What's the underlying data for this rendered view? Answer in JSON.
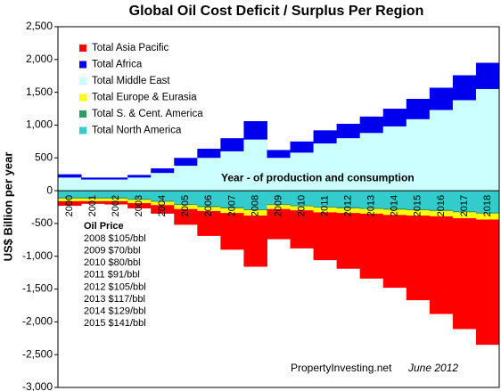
{
  "chart_data": {
    "type": "stacked-step-area",
    "title": "Global Oil Cost Deficit / Surplus Per Region",
    "y_label": "US$ Billion per year",
    "categories": [
      "2000",
      "2001",
      "2002",
      "2003",
      "2004",
      "2005",
      "2006",
      "2007",
      "2008",
      "2009",
      "2010",
      "2011",
      "2012",
      "2013",
      "2014",
      "2015",
      "2016",
      "2017",
      "2018"
    ],
    "series": [
      {
        "name": "Total Asia Pacific",
        "color": "#ff0000",
        "values": [
          -70,
          -40,
          -50,
          -80,
          -130,
          -240,
          -380,
          -560,
          -780,
          -460,
          -580,
          -730,
          -850,
          -990,
          -1110,
          -1290,
          -1490,
          -1690,
          -1910
        ]
      },
      {
        "name": "Total Africa",
        "color": "#0000ee",
        "values": [
          50,
          30,
          30,
          40,
          70,
          120,
          140,
          200,
          280,
          120,
          170,
          200,
          220,
          250,
          270,
          310,
          340,
          380,
          400
        ]
      },
      {
        "name": "Total Middle East",
        "color": "#ccffff",
        "values": [
          200,
          170,
          170,
          200,
          270,
          380,
          500,
          600,
          780,
          500,
          580,
          720,
          800,
          880,
          980,
          1090,
          1230,
          1380,
          1550
        ]
      },
      {
        "name": "Total Europe & Eurasia",
        "color": "#ffff00",
        "values": [
          -40,
          -40,
          -40,
          -50,
          -50,
          -60,
          -60,
          -70,
          -80,
          -60,
          -60,
          -70,
          -70,
          -70,
          -80,
          -80,
          -80,
          -90,
          -90
        ]
      },
      {
        "name": "Total S. & Cent. America",
        "color": "#339966",
        "values": [
          -20,
          -20,
          -20,
          -20,
          -20,
          -20,
          -20,
          -20,
          -20,
          -20,
          -20,
          -20,
          -20,
          -20,
          -20,
          -20,
          -20,
          -20,
          -20
        ]
      },
      {
        "name": "Total North America",
        "color": "#33cccc",
        "values": [
          -100,
          -100,
          -100,
          -120,
          -150,
          -200,
          -230,
          -250,
          -280,
          -200,
          -220,
          -240,
          -250,
          -260,
          -270,
          -280,
          -290,
          -310,
          -330
        ]
      }
    ],
    "ylim": [
      -3000,
      2500
    ],
    "yticks": [
      {
        "value": -3000,
        "label": "-3,000"
      },
      {
        "value": -2500,
        "label": "-2,500"
      },
      {
        "value": -2000,
        "label": "-2,000"
      },
      {
        "value": -1500,
        "label": "-1,500"
      },
      {
        "value": -1000,
        "label": "-1,000"
      },
      -500,
      0,
      500,
      {
        "value": 1000,
        "label": "1,000"
      },
      {
        "value": 1500,
        "label": "1,500"
      },
      {
        "value": 2000,
        "label": "2,000"
      },
      {
        "value": 2500,
        "label": "2,500"
      }
    ],
    "legend": "upper left",
    "annotation": "Year - of production and consumption",
    "oil_price": {
      "title": "Oil Price",
      "lines": [
        "2008  $105/bbl",
        "2009  $70/bbl",
        "2010 $80/bbl",
        "2011 $91/bbl",
        "2012 $105/bbl",
        "2013 $117/bbl",
        "2014 $129/bbl",
        "2015 $141/bbl"
      ]
    },
    "source": "PropertyInvesting.net",
    "date": "June 2012"
  }
}
